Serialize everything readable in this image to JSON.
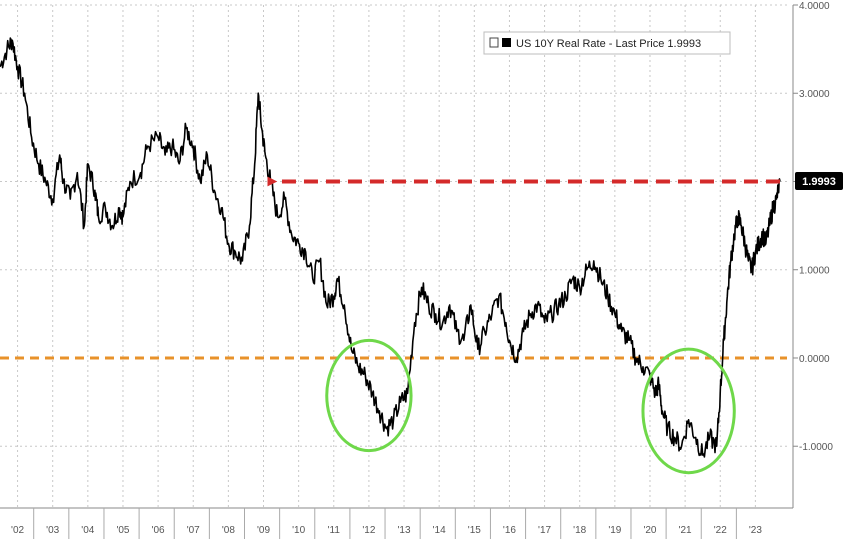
{
  "chart_data": {
    "type": "line",
    "legend": {
      "label": "US 10Y Real Rate - Last Price 1.9993",
      "placement": "top-right"
    },
    "last_value_label": "1.9993",
    "xlabel": "",
    "ylabel": "",
    "xlim": [
      2001.5,
      2023.9
    ],
    "ylim": [
      -1.7,
      4.0
    ],
    "x_ticks": [
      2002,
      2003,
      2004,
      2005,
      2006,
      2007,
      2008,
      2009,
      2010,
      2011,
      2012,
      2013,
      2014,
      2015,
      2016,
      2017,
      2018,
      2019,
      2020,
      2021,
      2022,
      2023
    ],
    "x_tick_labels": [
      "'02",
      "'03",
      "'04",
      "'05",
      "'06",
      "'07",
      "'08",
      "'09",
      "'10",
      "'11",
      "'12",
      "'13",
      "'14",
      "'15",
      "'16",
      "'17",
      "'18",
      "'19",
      "'20",
      "'21",
      "'22",
      "'23"
    ],
    "y_ticks": [
      -1,
      0,
      1,
      2,
      3,
      4
    ],
    "y_tick_labels": [
      "-1.0000",
      "0.0000",
      "1.0000",
      "2.0000",
      "3.0000",
      "4.0000"
    ],
    "grid": true,
    "colors": {
      "line": "#000000",
      "grid": "#c8c8c8",
      "zero_line": "#e8922a",
      "arrow": "#d42a2a",
      "circle": "#6fd84a",
      "axis_label": "#555555"
    },
    "series": [
      {
        "name": "US 10Y Real Rate",
        "x": [
          2001.5,
          2001.7,
          2001.85,
          2002.0,
          2002.2,
          2002.4,
          2002.6,
          2002.8,
          2003.0,
          2003.2,
          2003.3,
          2003.5,
          2003.7,
          2003.9,
          2004.0,
          2004.2,
          2004.3,
          2004.5,
          2004.7,
          2004.9,
          2005.0,
          2005.2,
          2005.5,
          2005.7,
          2006.0,
          2006.2,
          2006.4,
          2006.6,
          2006.8,
          2007.0,
          2007.2,
          2007.4,
          2007.6,
          2007.8,
          2008.0,
          2008.2,
          2008.4,
          2008.6,
          2008.75,
          2008.85,
          2008.95,
          2009.05,
          2009.2,
          2009.4,
          2009.6,
          2009.8,
          2010.0,
          2010.2,
          2010.4,
          2010.6,
          2010.8,
          2011.0,
          2011.1,
          2011.3,
          2011.5,
          2011.7,
          2011.9,
          2012.1,
          2012.3,
          2012.5,
          2012.7,
          2012.9,
          2013.1,
          2013.3,
          2013.5,
          2013.7,
          2013.9,
          2014.1,
          2014.3,
          2014.5,
          2014.7,
          2014.9,
          2015.1,
          2015.3,
          2015.5,
          2015.7,
          2015.9,
          2016.0,
          2016.2,
          2016.4,
          2016.6,
          2016.8,
          2017.0,
          2017.2,
          2017.4,
          2017.6,
          2017.8,
          2018.0,
          2018.2,
          2018.4,
          2018.6,
          2018.8,
          2019.0,
          2019.2,
          2019.4,
          2019.6,
          2019.8,
          2020.0,
          2020.15,
          2020.25,
          2020.35,
          2020.5,
          2020.7,
          2020.9,
          2021.1,
          2021.3,
          2021.5,
          2021.7,
          2021.9,
          2022.0,
          2022.1,
          2022.2,
          2022.3,
          2022.4,
          2022.5,
          2022.6,
          2022.7,
          2022.8,
          2022.9,
          2023.0,
          2023.1,
          2023.2,
          2023.3,
          2023.4,
          2023.5,
          2023.6,
          2023.7
        ],
        "values": [
          3.3,
          3.5,
          3.6,
          3.3,
          3.0,
          2.5,
          2.2,
          2.0,
          1.8,
          2.3,
          2.0,
          1.8,
          2.1,
          1.5,
          2.2,
          1.9,
          1.6,
          1.7,
          1.5,
          1.7,
          1.6,
          2.0,
          2.1,
          2.4,
          2.5,
          2.3,
          2.4,
          2.2,
          2.6,
          2.4,
          2.0,
          2.3,
          1.9,
          1.7,
          1.3,
          1.2,
          1.1,
          1.5,
          2.2,
          3.0,
          2.6,
          2.3,
          2.0,
          1.6,
          1.8,
          1.4,
          1.3,
          1.2,
          0.9,
          1.1,
          0.6,
          0.7,
          0.9,
          0.6,
          0.1,
          -0.1,
          -0.2,
          -0.4,
          -0.6,
          -0.8,
          -0.7,
          -0.5,
          -0.4,
          0.4,
          0.8,
          0.6,
          0.5,
          0.4,
          0.6,
          0.3,
          0.2,
          0.6,
          0.1,
          0.3,
          0.5,
          0.7,
          0.4,
          0.2,
          0.0,
          0.3,
          0.5,
          0.6,
          0.4,
          0.5,
          0.6,
          0.7,
          0.9,
          0.8,
          1.0,
          1.1,
          0.9,
          0.7,
          0.5,
          0.3,
          0.2,
          0.0,
          -0.1,
          -0.2,
          -0.4,
          -0.3,
          -0.6,
          -0.8,
          -0.9,
          -1.0,
          -0.7,
          -0.9,
          -1.1,
          -0.9,
          -1.0,
          -0.4,
          0.2,
          0.7,
          1.1,
          1.4,
          1.6,
          1.5,
          1.3,
          1.1,
          1.0,
          1.2,
          1.3,
          1.4,
          1.3,
          1.5,
          1.7,
          1.8,
          2.0
        ]
      }
    ],
    "annotations": [
      {
        "type": "horizontal-line",
        "y": 0.0,
        "style": "dashed",
        "color": "orange"
      },
      {
        "type": "arrow",
        "from_x": 2023.7,
        "to_x": 2009.05,
        "y": 2.0,
        "style": "dashed",
        "color": "red"
      },
      {
        "type": "ellipse",
        "x_range": [
          2010.8,
          2013.2
        ],
        "y_range": [
          -1.05,
          0.2
        ],
        "color": "green"
      },
      {
        "type": "ellipse",
        "x_range": [
          2019.8,
          2022.4
        ],
        "y_range": [
          -1.3,
          0.1
        ],
        "color": "green"
      }
    ]
  }
}
